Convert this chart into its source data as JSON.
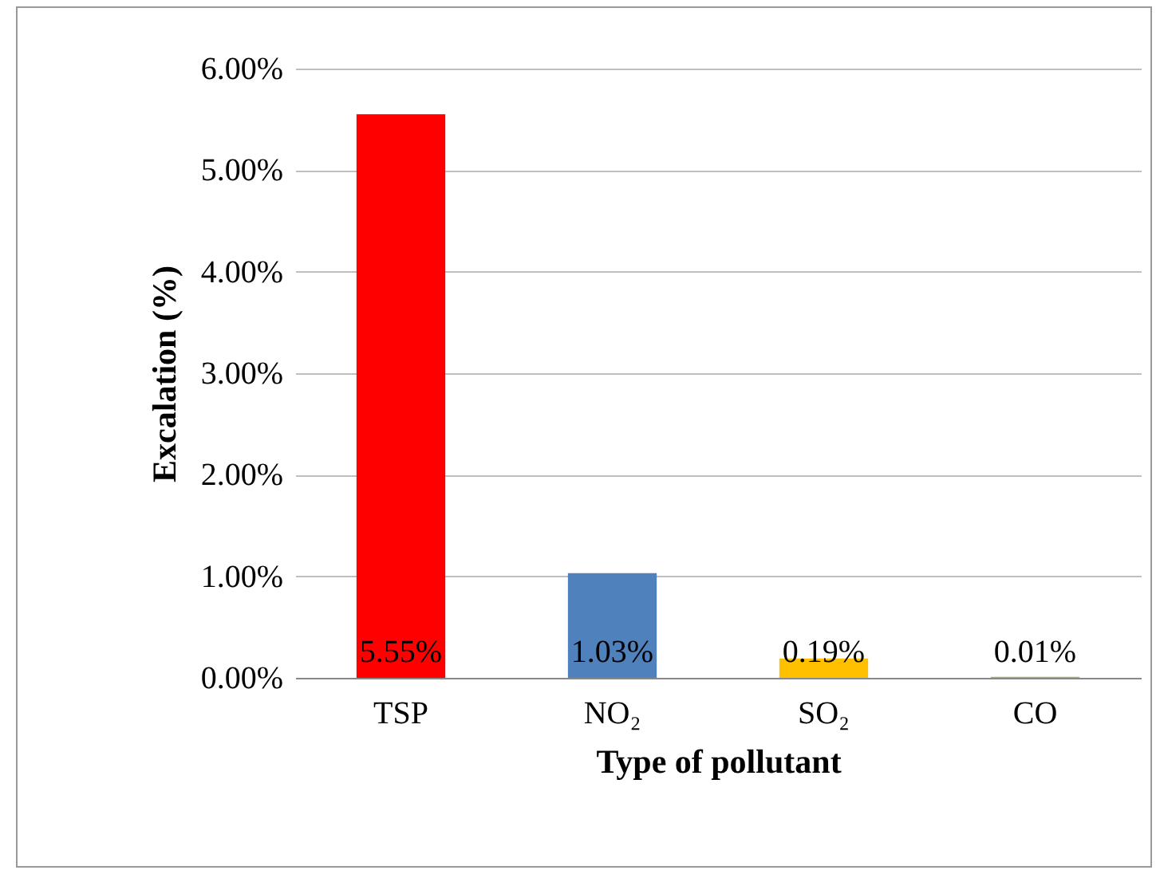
{
  "chart_data": {
    "type": "bar",
    "xlabel": "Type of pollutant",
    "ylabel": "Excalation (%)",
    "categories": [
      "TSP",
      "NO₂",
      "SO₂",
      "CO"
    ],
    "values": [
      5.55,
      1.03,
      0.19,
      0.01
    ],
    "colors": [
      "#ff0000",
      "#4f81bd",
      "#ffc000",
      "#9bbb59"
    ],
    "value_labels": [
      "5.55%",
      "1.03%",
      "0.19%",
      "0.01%"
    ],
    "ylim": [
      0,
      6
    ],
    "yticks": [
      {
        "value": 0,
        "label": "0.00%"
      },
      {
        "value": 1,
        "label": "1.00%"
      },
      {
        "value": 2,
        "label": "2.00%"
      },
      {
        "value": 3,
        "label": "3.00%"
      },
      {
        "value": 4,
        "label": "4.00%"
      },
      {
        "value": 5,
        "label": "5.00%"
      },
      {
        "value": 6,
        "label": "6.00%"
      }
    ],
    "grid": "y",
    "legend": false
  }
}
